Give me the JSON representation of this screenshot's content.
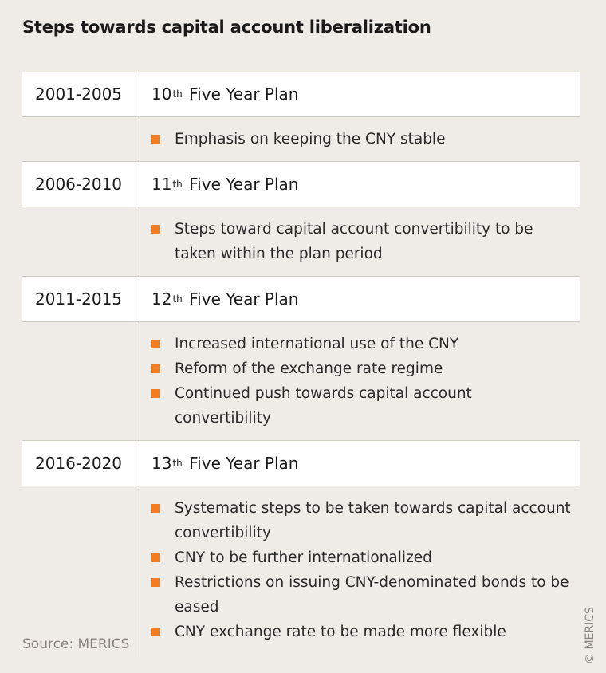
{
  "title": "Steps towards capital account liberalization",
  "periods": [
    {
      "years": "2001-2005",
      "plan_number": "10",
      "plan_suffix": "th",
      "plan_label": "Five Year Plan",
      "items": [
        "Emphasis on keeping the CNY stable"
      ]
    },
    {
      "years": "2006-2010",
      "plan_number": "11",
      "plan_suffix": "th",
      "plan_label": "Five Year Plan",
      "items": [
        "Steps toward capital account convertibility to be taken within the plan period"
      ]
    },
    {
      "years": "2011-2015",
      "plan_number": "12",
      "plan_suffix": "th",
      "plan_label": "Five Year Plan",
      "items": [
        "Increased international use of the CNY",
        "Reform of the exchange rate regime",
        "Continued push towards capital account convertibility"
      ]
    },
    {
      "years": "2016-2020",
      "plan_number": "13",
      "plan_suffix": "th",
      "plan_label": "Five Year Plan",
      "items": [
        "Systematic steps to be taken towards capital account convertibility",
        "CNY to be further internationalized",
        "Restrictions on issuing CNY-denominated bonds to be eased",
        "CNY exchange rate to be made more flexible"
      ]
    }
  ],
  "source": "Source: MERICS",
  "copyright": "© MERICS",
  "colors": {
    "bullet": "#f07c24",
    "header_bg": "#ffffff",
    "page_bg": "#efebe7"
  }
}
